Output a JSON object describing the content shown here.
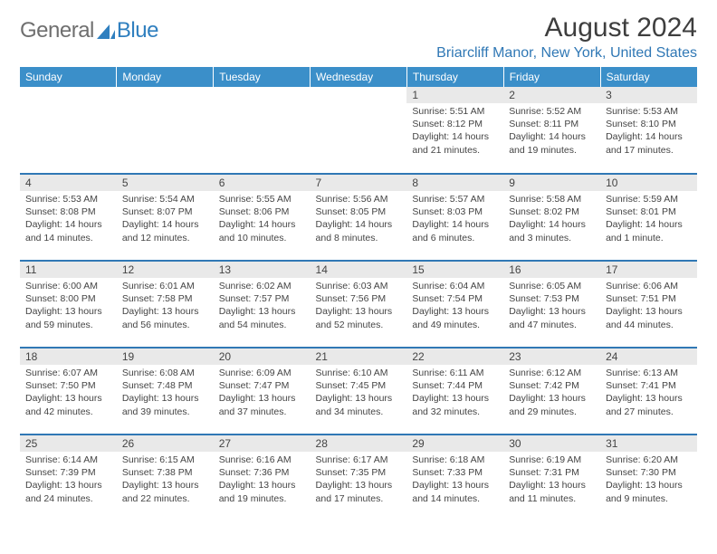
{
  "logo": {
    "text1": "General",
    "text2": "Blue"
  },
  "title": "August 2024",
  "location": "Briarcliff Manor, New York, United States",
  "colors": {
    "header_bg": "#3b8fc9",
    "accent": "#3078b5",
    "daynum_bg": "#e9e9e9",
    "text": "#444444",
    "logo_gray": "#6f6f6f",
    "logo_blue": "#2f7fbf"
  },
  "weekdays": [
    "Sunday",
    "Monday",
    "Tuesday",
    "Wednesday",
    "Thursday",
    "Friday",
    "Saturday"
  ],
  "weeks": [
    [
      {
        "n": "",
        "sr": "",
        "ss": "",
        "d1": "",
        "d2": ""
      },
      {
        "n": "",
        "sr": "",
        "ss": "",
        "d1": "",
        "d2": ""
      },
      {
        "n": "",
        "sr": "",
        "ss": "",
        "d1": "",
        "d2": ""
      },
      {
        "n": "",
        "sr": "",
        "ss": "",
        "d1": "",
        "d2": ""
      },
      {
        "n": "1",
        "sr": "Sunrise: 5:51 AM",
        "ss": "Sunset: 8:12 PM",
        "d1": "Daylight: 14 hours",
        "d2": "and 21 minutes."
      },
      {
        "n": "2",
        "sr": "Sunrise: 5:52 AM",
        "ss": "Sunset: 8:11 PM",
        "d1": "Daylight: 14 hours",
        "d2": "and 19 minutes."
      },
      {
        "n": "3",
        "sr": "Sunrise: 5:53 AM",
        "ss": "Sunset: 8:10 PM",
        "d1": "Daylight: 14 hours",
        "d2": "and 17 minutes."
      }
    ],
    [
      {
        "n": "4",
        "sr": "Sunrise: 5:53 AM",
        "ss": "Sunset: 8:08 PM",
        "d1": "Daylight: 14 hours",
        "d2": "and 14 minutes."
      },
      {
        "n": "5",
        "sr": "Sunrise: 5:54 AM",
        "ss": "Sunset: 8:07 PM",
        "d1": "Daylight: 14 hours",
        "d2": "and 12 minutes."
      },
      {
        "n": "6",
        "sr": "Sunrise: 5:55 AM",
        "ss": "Sunset: 8:06 PM",
        "d1": "Daylight: 14 hours",
        "d2": "and 10 minutes."
      },
      {
        "n": "7",
        "sr": "Sunrise: 5:56 AM",
        "ss": "Sunset: 8:05 PM",
        "d1": "Daylight: 14 hours",
        "d2": "and 8 minutes."
      },
      {
        "n": "8",
        "sr": "Sunrise: 5:57 AM",
        "ss": "Sunset: 8:03 PM",
        "d1": "Daylight: 14 hours",
        "d2": "and 6 minutes."
      },
      {
        "n": "9",
        "sr": "Sunrise: 5:58 AM",
        "ss": "Sunset: 8:02 PM",
        "d1": "Daylight: 14 hours",
        "d2": "and 3 minutes."
      },
      {
        "n": "10",
        "sr": "Sunrise: 5:59 AM",
        "ss": "Sunset: 8:01 PM",
        "d1": "Daylight: 14 hours",
        "d2": "and 1 minute."
      }
    ],
    [
      {
        "n": "11",
        "sr": "Sunrise: 6:00 AM",
        "ss": "Sunset: 8:00 PM",
        "d1": "Daylight: 13 hours",
        "d2": "and 59 minutes."
      },
      {
        "n": "12",
        "sr": "Sunrise: 6:01 AM",
        "ss": "Sunset: 7:58 PM",
        "d1": "Daylight: 13 hours",
        "d2": "and 56 minutes."
      },
      {
        "n": "13",
        "sr": "Sunrise: 6:02 AM",
        "ss": "Sunset: 7:57 PM",
        "d1": "Daylight: 13 hours",
        "d2": "and 54 minutes."
      },
      {
        "n": "14",
        "sr": "Sunrise: 6:03 AM",
        "ss": "Sunset: 7:56 PM",
        "d1": "Daylight: 13 hours",
        "d2": "and 52 minutes."
      },
      {
        "n": "15",
        "sr": "Sunrise: 6:04 AM",
        "ss": "Sunset: 7:54 PM",
        "d1": "Daylight: 13 hours",
        "d2": "and 49 minutes."
      },
      {
        "n": "16",
        "sr": "Sunrise: 6:05 AM",
        "ss": "Sunset: 7:53 PM",
        "d1": "Daylight: 13 hours",
        "d2": "and 47 minutes."
      },
      {
        "n": "17",
        "sr": "Sunrise: 6:06 AM",
        "ss": "Sunset: 7:51 PM",
        "d1": "Daylight: 13 hours",
        "d2": "and 44 minutes."
      }
    ],
    [
      {
        "n": "18",
        "sr": "Sunrise: 6:07 AM",
        "ss": "Sunset: 7:50 PM",
        "d1": "Daylight: 13 hours",
        "d2": "and 42 minutes."
      },
      {
        "n": "19",
        "sr": "Sunrise: 6:08 AM",
        "ss": "Sunset: 7:48 PM",
        "d1": "Daylight: 13 hours",
        "d2": "and 39 minutes."
      },
      {
        "n": "20",
        "sr": "Sunrise: 6:09 AM",
        "ss": "Sunset: 7:47 PM",
        "d1": "Daylight: 13 hours",
        "d2": "and 37 minutes."
      },
      {
        "n": "21",
        "sr": "Sunrise: 6:10 AM",
        "ss": "Sunset: 7:45 PM",
        "d1": "Daylight: 13 hours",
        "d2": "and 34 minutes."
      },
      {
        "n": "22",
        "sr": "Sunrise: 6:11 AM",
        "ss": "Sunset: 7:44 PM",
        "d1": "Daylight: 13 hours",
        "d2": "and 32 minutes."
      },
      {
        "n": "23",
        "sr": "Sunrise: 6:12 AM",
        "ss": "Sunset: 7:42 PM",
        "d1": "Daylight: 13 hours",
        "d2": "and 29 minutes."
      },
      {
        "n": "24",
        "sr": "Sunrise: 6:13 AM",
        "ss": "Sunset: 7:41 PM",
        "d1": "Daylight: 13 hours",
        "d2": "and 27 minutes."
      }
    ],
    [
      {
        "n": "25",
        "sr": "Sunrise: 6:14 AM",
        "ss": "Sunset: 7:39 PM",
        "d1": "Daylight: 13 hours",
        "d2": "and 24 minutes."
      },
      {
        "n": "26",
        "sr": "Sunrise: 6:15 AM",
        "ss": "Sunset: 7:38 PM",
        "d1": "Daylight: 13 hours",
        "d2": "and 22 minutes."
      },
      {
        "n": "27",
        "sr": "Sunrise: 6:16 AM",
        "ss": "Sunset: 7:36 PM",
        "d1": "Daylight: 13 hours",
        "d2": "and 19 minutes."
      },
      {
        "n": "28",
        "sr": "Sunrise: 6:17 AM",
        "ss": "Sunset: 7:35 PM",
        "d1": "Daylight: 13 hours",
        "d2": "and 17 minutes."
      },
      {
        "n": "29",
        "sr": "Sunrise: 6:18 AM",
        "ss": "Sunset: 7:33 PM",
        "d1": "Daylight: 13 hours",
        "d2": "and 14 minutes."
      },
      {
        "n": "30",
        "sr": "Sunrise: 6:19 AM",
        "ss": "Sunset: 7:31 PM",
        "d1": "Daylight: 13 hours",
        "d2": "and 11 minutes."
      },
      {
        "n": "31",
        "sr": "Sunrise: 6:20 AM",
        "ss": "Sunset: 7:30 PM",
        "d1": "Daylight: 13 hours",
        "d2": "and 9 minutes."
      }
    ]
  ]
}
